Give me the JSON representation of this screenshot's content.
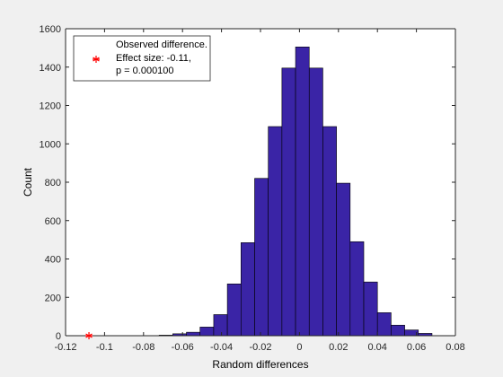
{
  "chart_data": {
    "type": "bar",
    "xlabel": "Random differences",
    "ylabel": "Count",
    "xlim": [
      -0.12,
      0.08
    ],
    "ylim": [
      0,
      1600
    ],
    "xticks": [
      -0.12,
      -0.1,
      -0.08,
      -0.06,
      -0.04,
      -0.02,
      0,
      0.02,
      0.04,
      0.06,
      0.08
    ],
    "xtick_labels": [
      "-0.12",
      "-0.1",
      "-0.08",
      "-0.06",
      "-0.04",
      "-0.02",
      "0",
      "0.02",
      "0.04",
      "0.06",
      "0.08"
    ],
    "yticks": [
      0,
      200,
      400,
      600,
      800,
      1000,
      1200,
      1400,
      1600
    ],
    "ytick_labels": [
      "0",
      "200",
      "400",
      "600",
      "800",
      "1000",
      "1200",
      "1400",
      "1600"
    ],
    "grid": false,
    "legend_position": "top-left",
    "bar_color": "#3a24a6",
    "bin_width": 0.007,
    "bins": [
      {
        "x": -0.0685,
        "count": 3
      },
      {
        "x": -0.0615,
        "count": 10
      },
      {
        "x": -0.0545,
        "count": 18
      },
      {
        "x": -0.0475,
        "count": 45
      },
      {
        "x": -0.0405,
        "count": 110
      },
      {
        "x": -0.0335,
        "count": 270
      },
      {
        "x": -0.0265,
        "count": 485
      },
      {
        "x": -0.0195,
        "count": 820
      },
      {
        "x": -0.0125,
        "count": 1090
      },
      {
        "x": -0.0055,
        "count": 1395
      },
      {
        "x": 0.0015,
        "count": 1505
      },
      {
        "x": 0.0085,
        "count": 1395
      },
      {
        "x": 0.0155,
        "count": 1090
      },
      {
        "x": 0.0225,
        "count": 795
      },
      {
        "x": 0.0295,
        "count": 490
      },
      {
        "x": 0.0365,
        "count": 280
      },
      {
        "x": 0.0435,
        "count": 120
      },
      {
        "x": 0.0505,
        "count": 55
      },
      {
        "x": 0.0575,
        "count": 30
      },
      {
        "x": 0.0645,
        "count": 12
      }
    ],
    "observed": {
      "x": -0.108,
      "y": 0,
      "marker": "*",
      "color": "#ff0000"
    },
    "legend": {
      "lines": [
        "Observed difference.",
        "Effect size: -0.11,",
        "p = 0.000100"
      ]
    }
  }
}
